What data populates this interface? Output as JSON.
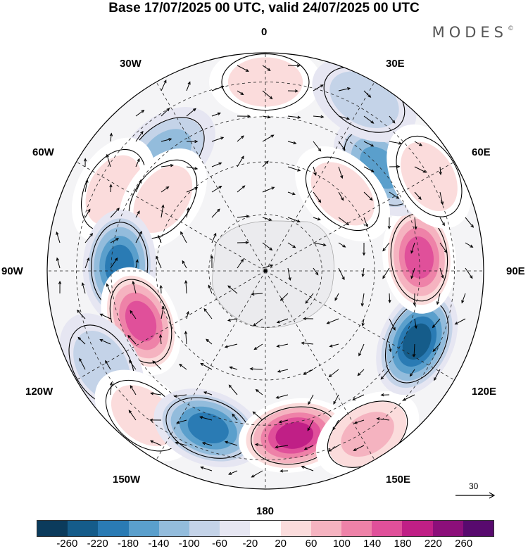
{
  "title": "Base 17/07/2025 00 UTC, valid 24/07/2025 00 UTC",
  "brand": "MODES",
  "brand_mark": "©",
  "longitude_labels": {
    "top": "0",
    "bottom": "180",
    "left": "90W",
    "right": "90E",
    "nw_upper": "30W",
    "nw_lower": "60W",
    "ne_upper": "30E",
    "ne_lower": "60E",
    "sw_upper": "120W",
    "sw_lower": "150W",
    "se_upper": "120E",
    "se_lower": "150E"
  },
  "reference_vector": "30",
  "colorbar": {
    "colors": [
      "#0b3b5c",
      "#155c8a",
      "#2a7bb4",
      "#5a9fcc",
      "#93bcdc",
      "#c4d3e8",
      "#e6e6f2",
      "#ffffff",
      "#fbdcdc",
      "#f5b3c0",
      "#ee82a8",
      "#e0509a",
      "#c01f86",
      "#8c0f7a",
      "#580a6e"
    ],
    "ticks": [
      "-260",
      "-220",
      "-180",
      "-140",
      "-100",
      "-60",
      "-20",
      "20",
      "60",
      "100",
      "140",
      "180",
      "220",
      "260"
    ]
  },
  "map": {
    "anomalies": [
      {
        "lon": 0,
        "lat": -30,
        "value": 60
      },
      {
        "lon": -40,
        "lat": -45,
        "value": -100
      },
      {
        "lon": -62,
        "lat": -38,
        "value": 60
      },
      {
        "lon": -55,
        "lat": -55,
        "value": 60
      },
      {
        "lon": -88,
        "lat": -48,
        "value": -180
      },
      {
        "lon": -112,
        "lat": -52,
        "value": 180
      },
      {
        "lon": -120,
        "lat": -30,
        "value": -60
      },
      {
        "lon": -140,
        "lat": -30,
        "value": 60
      },
      {
        "lon": -160,
        "lat": -40,
        "value": -180
      },
      {
        "lon": 170,
        "lat": -40,
        "value": 220
      },
      {
        "lon": 148,
        "lat": -28,
        "value": 100
      },
      {
        "lon": 115,
        "lat": -40,
        "value": -220
      },
      {
        "lon": 85,
        "lat": -45,
        "value": 180
      },
      {
        "lon": 48,
        "lat": -45,
        "value": -140
      },
      {
        "lon": 30,
        "lat": -25,
        "value": -60
      },
      {
        "lon": 60,
        "lat": -30,
        "value": 60
      },
      {
        "lon": 45,
        "lat": -60,
        "value": 60
      }
    ]
  }
}
